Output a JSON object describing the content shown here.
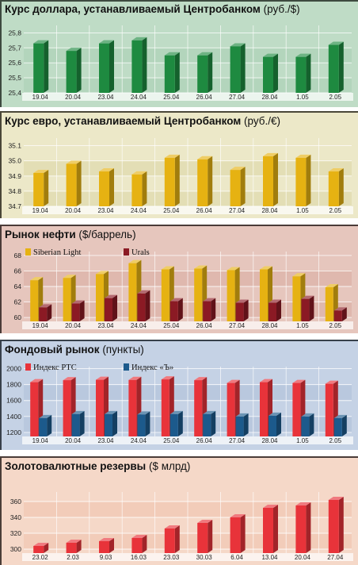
{
  "chart_data": [
    {
      "type": "bar",
      "title": "Курс доллара, устанавливаемый Центробанком",
      "unit": "(руб./$)",
      "categories": [
        "19.04",
        "20.04",
        "23.04",
        "24.04",
        "25.04",
        "26.04",
        "27.04",
        "28.04",
        "1.05",
        "2.05"
      ],
      "ylim": [
        25.4,
        25.85
      ],
      "yticks": [
        "25,4",
        "25,5",
        "25,6",
        "25,7",
        "25,8"
      ],
      "series": [
        {
          "values": [
            25.73,
            25.68,
            25.73,
            25.75,
            25.65,
            25.65,
            25.71,
            25.64,
            25.64,
            25.72
          ],
          "color": "#1e8a40"
        }
      ],
      "colors": {
        "bg": "#bfdcc6",
        "band": "#a9cfb4",
        "frame": "#3d4a3f"
      }
    },
    {
      "type": "bar",
      "title": "Курс евро, устанавливаемый Центробанком",
      "unit": "(руб./€)",
      "categories": [
        "19.04",
        "20.04",
        "23.04",
        "24.04",
        "25.04",
        "26.04",
        "27.04",
        "28.04",
        "1.05",
        "2.05"
      ],
      "ylim": [
        34.7,
        35.15
      ],
      "yticks": [
        "34.7",
        "34.8",
        "34.9",
        "35.0",
        "35.1"
      ],
      "series": [
        {
          "values": [
            34.92,
            34.98,
            34.93,
            34.91,
            35.02,
            35.01,
            34.94,
            35.03,
            35.02,
            34.93
          ],
          "color": "#e6b212"
        }
      ],
      "colors": {
        "bg": "#ece8c8",
        "band": "#dcd6a6",
        "frame": "#4a4738"
      }
    },
    {
      "type": "bar",
      "title": "Рынок нефти",
      "unit": "($/баррель)",
      "categories": [
        "19.04",
        "20.04",
        "23.04",
        "24.04",
        "25.04",
        "26.04",
        "27.04",
        "28.04",
        "1.05",
        "2.05"
      ],
      "ylim": [
        59.5,
        68.5
      ],
      "yticks": [
        "60",
        "62",
        "64",
        "66",
        "68"
      ],
      "series": [
        {
          "name": "Siberian Light",
          "values": [
            64.8,
            65.1,
            65.6,
            67.0,
            66.2,
            66.3,
            66.1,
            66.2,
            65.3,
            63.9
          ],
          "color": "#e6b212"
        },
        {
          "name": "Urals",
          "values": [
            61.3,
            61.8,
            62.5,
            63.1,
            62.1,
            62.1,
            61.9,
            61.9,
            62.4,
            60.9
          ],
          "color": "#8b1a24"
        }
      ],
      "colors": {
        "bg": "#e6c6bd",
        "band": "#d8ada3",
        "frame": "#4a3b38"
      }
    },
    {
      "type": "bar",
      "title": "Фондовый рынок",
      "unit": "(пункты)",
      "categories": [
        "19.04",
        "20.04",
        "23.04",
        "24.04",
        "25.04",
        "26.04",
        "27.04",
        "28.04",
        "1.05",
        "2.05"
      ],
      "ylim": [
        1150,
        2025
      ],
      "yticks": [
        "1200",
        "1400",
        "1600",
        "1800",
        "2000"
      ],
      "series": [
        {
          "name": "Индекс РТС",
          "values": [
            1830,
            1855,
            1860,
            1858,
            1865,
            1855,
            1820,
            1830,
            1820,
            1810
          ],
          "color": "#e8333a"
        },
        {
          "name": "Индекс «Ъ»",
          "values": [
            1380,
            1430,
            1430,
            1425,
            1430,
            1430,
            1400,
            1410,
            1400,
            1380
          ],
          "color": "#1c5a8c"
        }
      ],
      "colors": {
        "bg": "#c5d2e5",
        "band": "#aebfd9",
        "frame": "#38404a"
      }
    },
    {
      "type": "bar",
      "title": "Золотовалютные резервы",
      "unit": "($ млрд)",
      "categories": [
        "23.02",
        "2.03",
        "9.03",
        "16.03",
        "23.03",
        "30.03",
        "6.04",
        "13.04",
        "20.04",
        "27.04"
      ],
      "ylim": [
        295,
        372
      ],
      "yticks": [
        "300",
        "320",
        "340",
        "360"
      ],
      "series": [
        {
          "values": [
            304,
            308,
            310,
            314,
            326,
            333,
            340,
            352,
            355,
            362
          ],
          "color": "#e8333a"
        }
      ],
      "colors": {
        "bg": "#f5d8c8",
        "band": "#eec3ad",
        "frame": "#4a3d38"
      }
    }
  ]
}
